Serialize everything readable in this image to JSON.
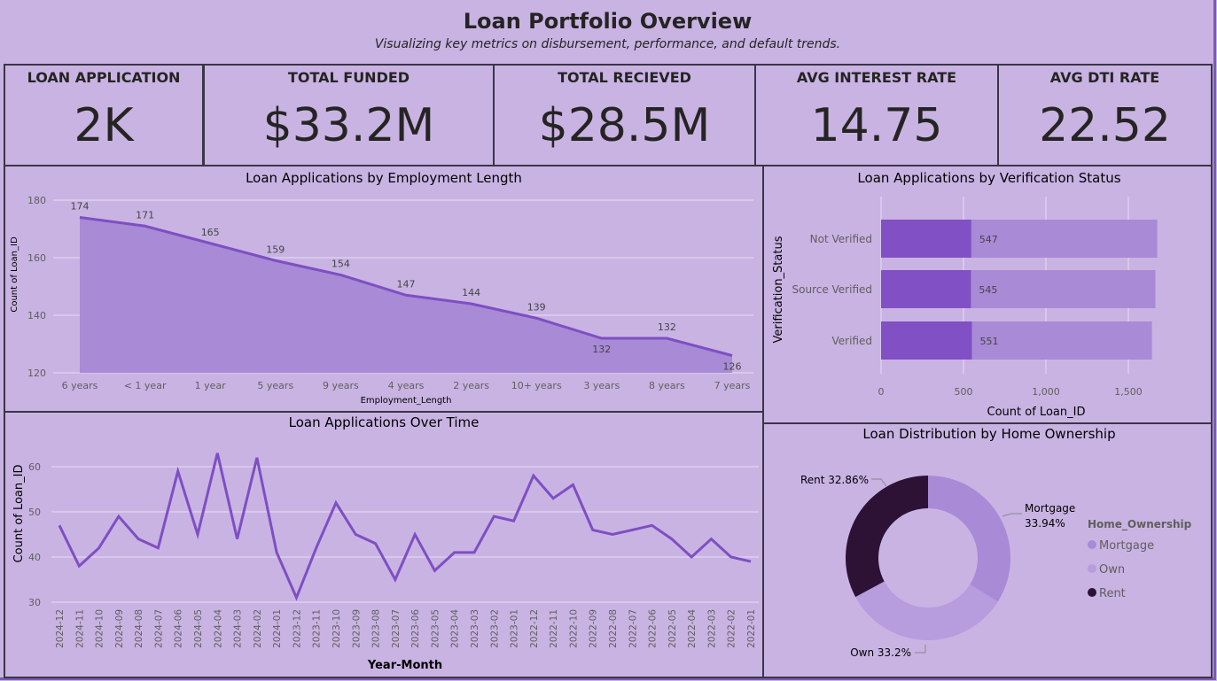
{
  "header": {
    "title": "Loan Portfolio Overview",
    "subtitle": "Visualizing key metrics on disbursement, performance, and default trends."
  },
  "kpis": [
    {
      "label": "LOAN APPLICATION",
      "value": "2K"
    },
    {
      "label": "TOTAL FUNDED",
      "value": "$33.2M"
    },
    {
      "label": "TOTAL RECIEVED",
      "value": "$28.5M"
    },
    {
      "label": "AVG INTEREST RATE",
      "value": "14.75"
    },
    {
      "label": "AVG DTI RATE",
      "value": "22.52"
    }
  ],
  "colors": {
    "background": "#c9b3e3",
    "line": "#7e4fc3",
    "area": "#a98ad6",
    "bar_dark": "#8050c4",
    "bar_light": "#a98ad6",
    "mortgage": "#a98ad6",
    "own": "#b79ddd",
    "rent": "#2e1235",
    "grid": "#e6dcf2"
  },
  "chart_data": [
    {
      "type": "area",
      "title": "Loan Applications by Employment Length",
      "xlabel": "Employment_Length",
      "ylabel": "Count of Loan_ID",
      "categories": [
        "6 years",
        "< 1 year",
        "1 year",
        "5 years",
        "9 years",
        "4 years",
        "2 years",
        "10+ years",
        "3 years",
        "8 years",
        "7 years"
      ],
      "values": [
        174,
        171,
        165,
        159,
        154,
        147,
        144,
        139,
        132,
        132,
        126
      ],
      "yticks": [
        120,
        140,
        160,
        180
      ],
      "ylim": [
        120,
        180
      ],
      "grid": true
    },
    {
      "type": "line",
      "title": "Loan Applications Over Time",
      "xlabel": "Year-Month",
      "ylabel": "Count of Loan_ID",
      "categories": [
        "2024-12",
        "2024-11",
        "2024-10",
        "2024-09",
        "2024-08",
        "2024-07",
        "2024-06",
        "2024-05",
        "2024-04",
        "2024-03",
        "2024-02",
        "2024-01",
        "2023-12",
        "2023-11",
        "2023-10",
        "2023-09",
        "2023-08",
        "2023-07",
        "2023-06",
        "2023-05",
        "2023-04",
        "2023-03",
        "2023-02",
        "2023-01",
        "2022-12",
        "2022-11",
        "2022-10",
        "2022-09",
        "2022-08",
        "2022-07",
        "2022-06",
        "2022-05",
        "2022-04",
        "2022-03",
        "2022-02",
        "2022-01"
      ],
      "values": [
        47,
        38,
        42,
        49,
        44,
        42,
        59,
        45,
        63,
        44,
        62,
        41,
        31,
        42,
        52,
        45,
        43,
        35,
        45,
        37,
        41,
        41,
        49,
        48,
        58,
        53,
        56,
        46,
        45,
        46,
        47,
        44,
        40,
        44,
        40,
        39
      ],
      "yticks": [
        30,
        40,
        50,
        60
      ],
      "ylim": [
        30,
        60
      ],
      "grid": true
    },
    {
      "type": "bar",
      "orientation": "horizontal",
      "title": "Loan Applications by Verification Status",
      "xlabel": "Count of Loan_ID",
      "ylabel": "Verification_Status",
      "categories": [
        "Not Verified",
        "Source Verified",
        "Verified"
      ],
      "series": [
        {
          "values": [
            547,
            545,
            551
          ]
        },
        {
          "values": [
            1675,
            1664,
            1643
          ]
        }
      ],
      "xticks": [
        "0",
        "500",
        "1,000",
        "1,500"
      ],
      "xlim": [
        0,
        1800
      ],
      "grid": true
    },
    {
      "type": "pie",
      "donut": true,
      "title": "Loan Distribution by Home Ownership",
      "legend_title": "Home_Ownership",
      "legend_position": "right",
      "slices": [
        {
          "label": "Mortgage",
          "value": 33.94,
          "display": "Mortgage 33.94%"
        },
        {
          "label": "Own",
          "value": 33.2,
          "display": "Own 33.2%"
        },
        {
          "label": "Rent",
          "value": 32.86,
          "display": "Rent 32.86%"
        }
      ]
    }
  ]
}
